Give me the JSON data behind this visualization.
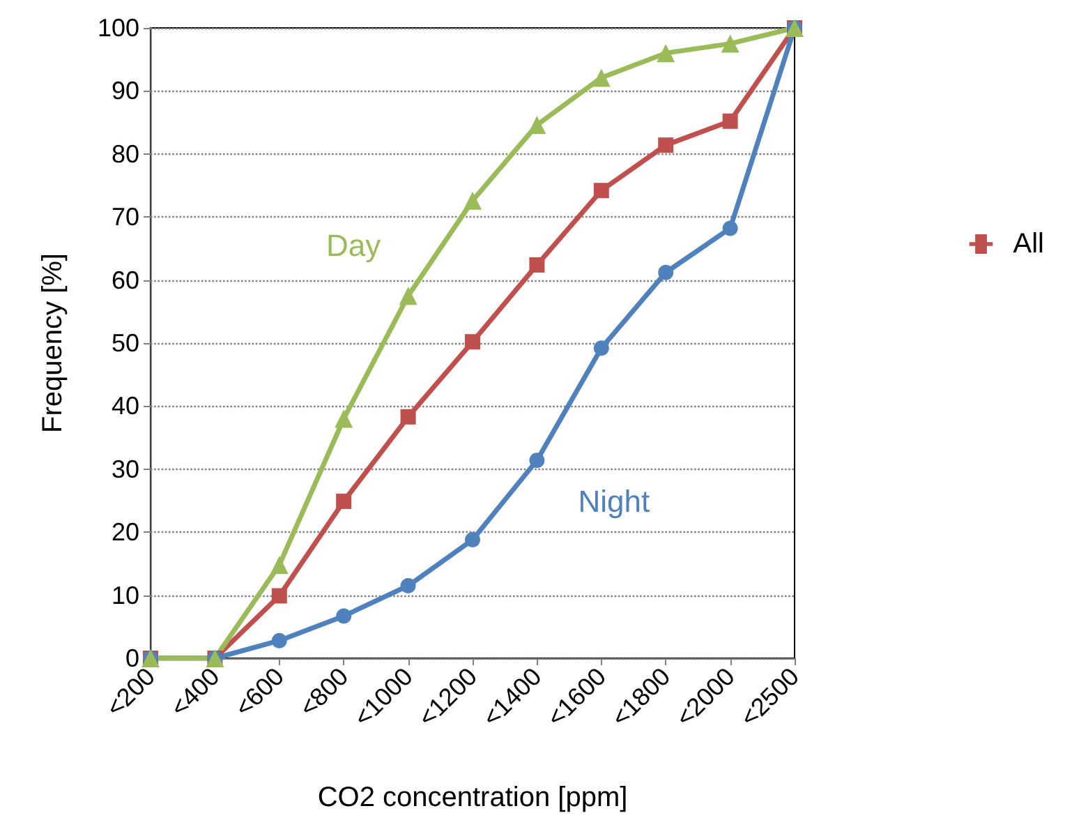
{
  "chart_data": {
    "type": "line",
    "xlabel": "CO2 concentration [ppm]",
    "ylabel": "Frequency [%]",
    "categories": [
      "<200",
      "<400",
      "<600",
      "<800",
      "<1000",
      "<1200",
      "<1400",
      "<1600",
      "<1800",
      "<2000",
      "<2500"
    ],
    "series": [
      {
        "name": "All",
        "color": "#c0504d",
        "marker": "square",
        "values": [
          0,
          0,
          9.9,
          24.9,
          38.3,
          50.2,
          62.4,
          74.2,
          81.4,
          85.2,
          100
        ]
      },
      {
        "name": "Night",
        "color": "#4f81bd",
        "marker": "circle",
        "values": [
          0,
          0,
          2.8,
          6.7,
          11.5,
          18.8,
          31.4,
          49.2,
          61.2,
          68.2,
          100
        ]
      },
      {
        "name": "Day",
        "color": "#9bbb59",
        "marker": "triangle",
        "values": [
          0,
          0,
          14.8,
          38,
          57.5,
          72.6,
          84.6,
          92.1,
          96,
          97.5,
          100
        ]
      }
    ],
    "ylim": [
      0,
      100
    ],
    "yticks": [
      0,
      10,
      20,
      30,
      40,
      50,
      60,
      70,
      80,
      90,
      100
    ],
    "grid": "y",
    "legend": "right",
    "line_style": "solid"
  }
}
